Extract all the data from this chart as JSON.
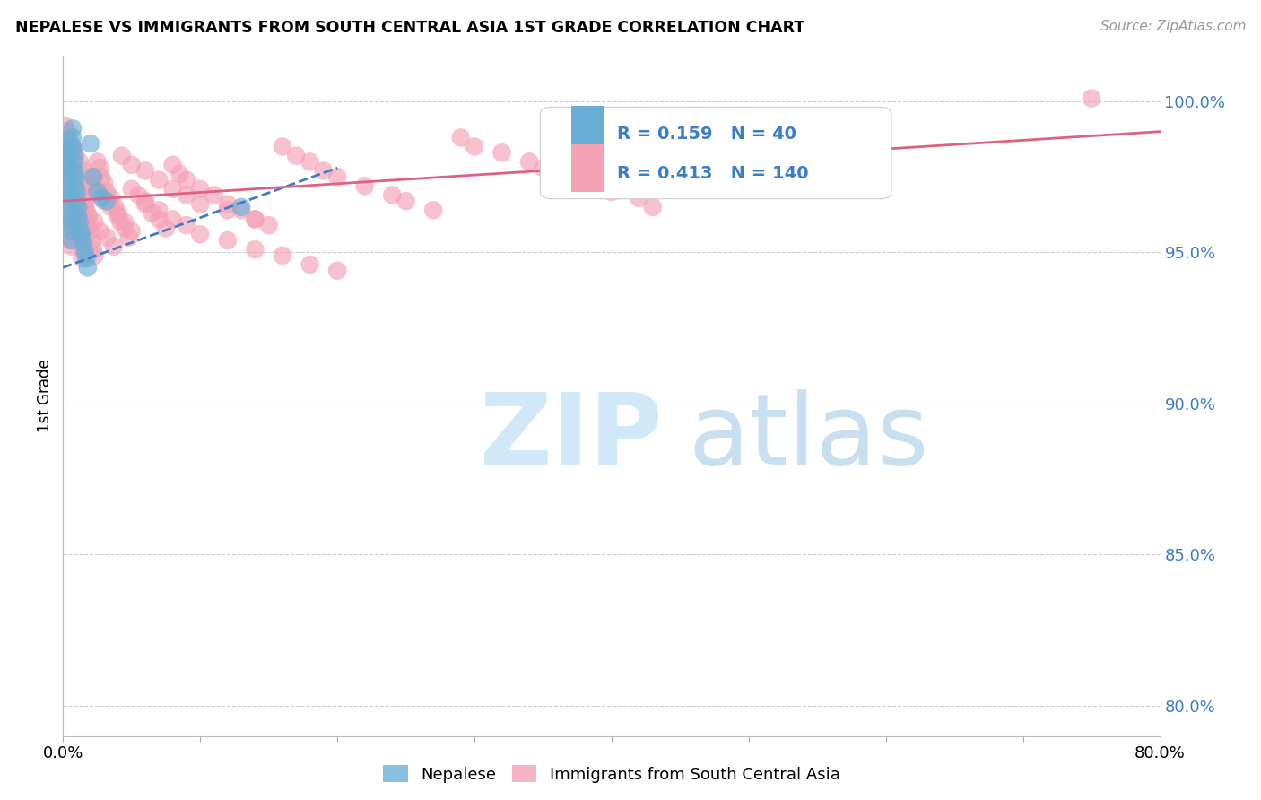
{
  "title": "NEPALESE VS IMMIGRANTS FROM SOUTH CENTRAL ASIA 1ST GRADE CORRELATION CHART",
  "source": "Source: ZipAtlas.com",
  "ylabel": "1st Grade",
  "ylabel_right_labels": [
    "100.0%",
    "95.0%",
    "90.0%",
    "85.0%",
    "80.0%"
  ],
  "ylabel_right_values": [
    1.0,
    0.95,
    0.9,
    0.85,
    0.8
  ],
  "xlim": [
    0.0,
    0.8
  ],
  "ylim": [
    0.79,
    1.015
  ],
  "legend_r1": "0.159",
  "legend_n1": "40",
  "legend_r2": "0.413",
  "legend_n2": "140",
  "color_blue": "#6aaed6",
  "color_pink": "#f4a0b5",
  "color_blue_line": "#3a7dc9",
  "color_pink_line": "#e06080",
  "color_blue_text": "#3a7dc9",
  "color_grid": "#cccccc",
  "watermark_zip": "ZIP",
  "watermark_atlas": "atlas",
  "watermark_color": "#d0e8f8",
  "blue_x": [
    0.002,
    0.002,
    0.003,
    0.003,
    0.004,
    0.004,
    0.004,
    0.005,
    0.005,
    0.005,
    0.005,
    0.006,
    0.006,
    0.006,
    0.006,
    0.007,
    0.007,
    0.007,
    0.008,
    0.008,
    0.008,
    0.009,
    0.009,
    0.01,
    0.01,
    0.011,
    0.011,
    0.012,
    0.013,
    0.014,
    0.015,
    0.016,
    0.017,
    0.018,
    0.02,
    0.022,
    0.025,
    0.028,
    0.032,
    0.13
  ],
  "blue_y": [
    0.987,
    0.984,
    0.982,
    0.979,
    0.977,
    0.975,
    0.972,
    0.97,
    0.968,
    0.966,
    0.963,
    0.961,
    0.959,
    0.957,
    0.954,
    0.991,
    0.988,
    0.985,
    0.983,
    0.98,
    0.977,
    0.975,
    0.972,
    0.97,
    0.967,
    0.965,
    0.962,
    0.96,
    0.957,
    0.955,
    0.953,
    0.95,
    0.948,
    0.945,
    0.986,
    0.975,
    0.97,
    0.968,
    0.967,
    0.965
  ],
  "pink_x": [
    0.001,
    0.001,
    0.002,
    0.002,
    0.003,
    0.003,
    0.003,
    0.004,
    0.004,
    0.004,
    0.005,
    0.005,
    0.005,
    0.005,
    0.006,
    0.006,
    0.006,
    0.007,
    0.007,
    0.007,
    0.008,
    0.008,
    0.008,
    0.009,
    0.009,
    0.01,
    0.01,
    0.011,
    0.011,
    0.012,
    0.012,
    0.013,
    0.013,
    0.014,
    0.014,
    0.015,
    0.015,
    0.016,
    0.017,
    0.018,
    0.019,
    0.02,
    0.021,
    0.022,
    0.023,
    0.025,
    0.027,
    0.028,
    0.03,
    0.032,
    0.035,
    0.038,
    0.04,
    0.042,
    0.045,
    0.048,
    0.05,
    0.055,
    0.06,
    0.065,
    0.07,
    0.075,
    0.08,
    0.085,
    0.09,
    0.1,
    0.11,
    0.12,
    0.13,
    0.14,
    0.15,
    0.16,
    0.17,
    0.18,
    0.19,
    0.2,
    0.22,
    0.24,
    0.25,
    0.27,
    0.29,
    0.3,
    0.32,
    0.34,
    0.35,
    0.37,
    0.38,
    0.4,
    0.42,
    0.43,
    0.45,
    0.47,
    0.48,
    0.5,
    0.52,
    0.53,
    0.003,
    0.005,
    0.007,
    0.009,
    0.012,
    0.015,
    0.018,
    0.022,
    0.026,
    0.03,
    0.035,
    0.04,
    0.045,
    0.05,
    0.06,
    0.07,
    0.08,
    0.09,
    0.1,
    0.12,
    0.14,
    0.16,
    0.18,
    0.2,
    0.006,
    0.008,
    0.01,
    0.013,
    0.016,
    0.019,
    0.023,
    0.027,
    0.032,
    0.037,
    0.043,
    0.05,
    0.06,
    0.07,
    0.08,
    0.09,
    0.1,
    0.12,
    0.14,
    0.75
  ],
  "pink_y": [
    0.992,
    0.989,
    0.987,
    0.984,
    0.982,
    0.979,
    0.977,
    0.974,
    0.972,
    0.969,
    0.967,
    0.964,
    0.962,
    0.959,
    0.957,
    0.954,
    0.952,
    0.975,
    0.972,
    0.969,
    0.984,
    0.981,
    0.978,
    0.976,
    0.973,
    0.971,
    0.968,
    0.966,
    0.963,
    0.961,
    0.958,
    0.956,
    0.953,
    0.951,
    0.948,
    0.972,
    0.969,
    0.967,
    0.964,
    0.962,
    0.959,
    0.957,
    0.954,
    0.951,
    0.949,
    0.98,
    0.978,
    0.975,
    0.973,
    0.97,
    0.968,
    0.965,
    0.963,
    0.96,
    0.958,
    0.955,
    0.971,
    0.969,
    0.966,
    0.963,
    0.961,
    0.958,
    0.979,
    0.976,
    0.974,
    0.971,
    0.969,
    0.966,
    0.964,
    0.961,
    0.959,
    0.985,
    0.982,
    0.98,
    0.977,
    0.975,
    0.972,
    0.969,
    0.967,
    0.964,
    0.988,
    0.985,
    0.983,
    0.98,
    0.978,
    0.975,
    0.973,
    0.97,
    0.968,
    0.965,
    0.985,
    0.982,
    0.98,
    0.977,
    0.975,
    0.972,
    0.99,
    0.987,
    0.985,
    0.982,
    0.98,
    0.977,
    0.975,
    0.972,
    0.97,
    0.967,
    0.965,
    0.962,
    0.96,
    0.957,
    0.967,
    0.964,
    0.961,
    0.959,
    0.956,
    0.954,
    0.951,
    0.949,
    0.946,
    0.944,
    0.975,
    0.972,
    0.97,
    0.967,
    0.965,
    0.962,
    0.96,
    0.957,
    0.955,
    0.952,
    0.982,
    0.979,
    0.977,
    0.974,
    0.971,
    0.969,
    0.966,
    0.964,
    0.961,
    1.001
  ]
}
